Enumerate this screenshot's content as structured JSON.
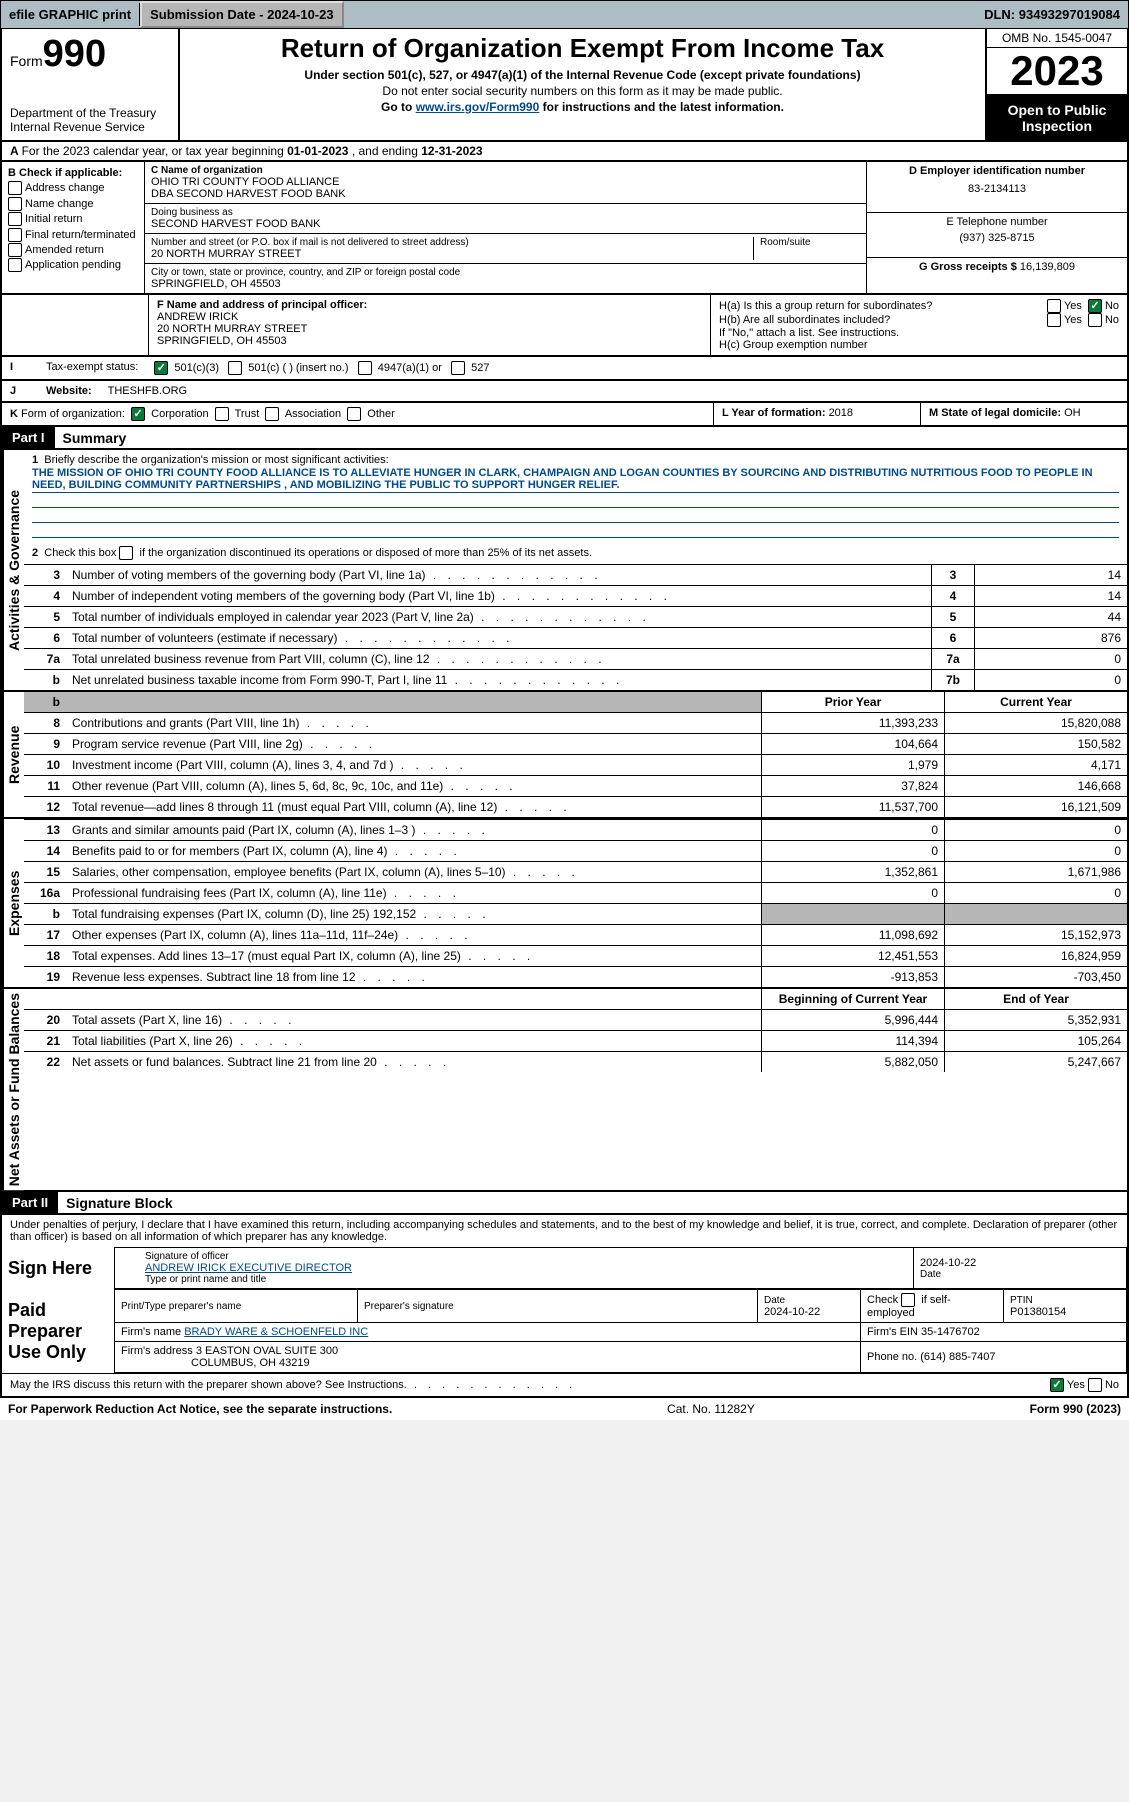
{
  "topbar": {
    "efile": "efile GRAPHIC print",
    "submission_label": "Submission Date - ",
    "submission_date": "2024-10-23",
    "dln_label": "DLN: ",
    "dln": "93493297019084"
  },
  "header": {
    "form_word": "Form",
    "form_no": "990",
    "dept": "Department of the Treasury Internal Revenue Service",
    "title": "Return of Organization Exempt From Income Tax",
    "sub1": "Under section 501(c), 527, or 4947(a)(1) of the Internal Revenue Code (except private foundations)",
    "sub2": "Do not enter social security numbers on this form as it may be made public.",
    "sub3_pre": "Go to ",
    "sub3_link": "www.irs.gov/Form990",
    "sub3_post": " for instructions and the latest information.",
    "omb": "OMB No. 1545-0047",
    "year": "2023",
    "open": "Open to Public Inspection"
  },
  "row_a": {
    "a": "A",
    "text": "For the 2023 calendar year, or tax year beginning ",
    "begin": "01-01-2023",
    "mid": " , and ending ",
    "end": "12-31-2023"
  },
  "block_b": {
    "title": "B Check if applicable:",
    "items": [
      "Address change",
      "Name change",
      "Initial return",
      "Final return/terminated",
      "Amended return",
      "Application pending"
    ]
  },
  "block_c": {
    "name_lbl": "C Name of organization",
    "name1": "OHIO TRI COUNTY FOOD ALLIANCE",
    "name2": "DBA SECOND HARVEST FOOD BANK",
    "dba_lbl": "Doing business as",
    "dba": "SECOND HARVEST FOOD BANK",
    "addr_lbl": "Number and street (or P.O. box if mail is not delivered to street address)",
    "room_lbl": "Room/suite",
    "addr": "20 NORTH MURRAY STREET",
    "city_lbl": "City or town, state or province, country, and ZIP or foreign postal code",
    "city": "SPRINGFIELD, OH  45503"
  },
  "block_d": {
    "lbl": "D Employer identification number",
    "val": "83-2134113"
  },
  "block_e": {
    "lbl": "E Telephone number",
    "val": "(937) 325-8715"
  },
  "block_g": {
    "lbl": "G Gross receipts $ ",
    "val": "16,139,809"
  },
  "block_f": {
    "lbl": "F Name and address of principal officer:",
    "name": "ANDREW IRICK",
    "addr1": "20 NORTH MURRAY STREET",
    "addr2": "SPRINGFIELD, OH  45503"
  },
  "block_h": {
    "ha": "H(a)  Is this a group return for subordinates?",
    "hb": "H(b)  Are all subordinates included?",
    "hb_note": "If \"No,\" attach a list. See instructions.",
    "hc": "H(c)  Group exemption number ",
    "yes": "Yes",
    "no": "No"
  },
  "row_i": {
    "i": "I",
    "lbl": "Tax-exempt status:",
    "opt1": "501(c)(3)",
    "opt2": "501(c) (  ) (insert no.)",
    "opt3": "4947(a)(1) or",
    "opt4": "527"
  },
  "row_j": {
    "j": "J",
    "lbl": "Website: ",
    "val": "THESHFB.ORG"
  },
  "row_k": {
    "k": "K",
    "lbl": "Form of organization:",
    "opts": [
      "Corporation",
      "Trust",
      "Association",
      "Other"
    ]
  },
  "row_l": {
    "lbl": "L Year of formation: ",
    "val": "2018"
  },
  "row_m": {
    "lbl": "M State of legal domicile: ",
    "val": "OH"
  },
  "part1": {
    "label": "Part I",
    "title": "Summary",
    "side_gov": "Activities & Governance",
    "side_rev": "Revenue",
    "side_exp": "Expenses",
    "side_net": "Net Assets or Fund Balances",
    "line1_lbl": "1",
    "line1_text": "Briefly describe the organization's mission or most significant activities:",
    "mission": "THE MISSION OF OHIO TRI COUNTY FOOD ALLIANCE IS TO ALLEVIATE HUNGER IN CLARK, CHAMPAIGN AND LOGAN COUNTIES BY SOURCING AND DISTRIBUTING NUTRITIOUS FOOD TO PEOPLE IN NEED, BUILDING COMMUNITY PARTNERSHIPS , AND MOBILIZING THE PUBLIC TO SUPPORT HUNGER RELIEF.",
    "line2_lbl": "2",
    "line2_text": "Check this box       if the organization discontinued its operations or disposed of more than 25% of its net assets.",
    "rows_gov": [
      {
        "n": "3",
        "t": "Number of voting members of the governing body (Part VI, line 1a)",
        "box": "3",
        "v": "14"
      },
      {
        "n": "4",
        "t": "Number of independent voting members of the governing body (Part VI, line 1b)",
        "box": "4",
        "v": "14"
      },
      {
        "n": "5",
        "t": "Total number of individuals employed in calendar year 2023 (Part V, line 2a)",
        "box": "5",
        "v": "44"
      },
      {
        "n": "6",
        "t": "Total number of volunteers (estimate if necessary)",
        "box": "6",
        "v": "876"
      },
      {
        "n": "7a",
        "t": "Total unrelated business revenue from Part VIII, column (C), line 12",
        "box": "7a",
        "v": "0"
      },
      {
        "n": "b",
        "t": "Net unrelated business taxable income from Form 990-T, Part I, line 11",
        "box": "7b",
        "v": "0"
      }
    ],
    "prior_year": "Prior Year",
    "current_year": "Current Year",
    "rows_rev": [
      {
        "n": "8",
        "t": "Contributions and grants (Part VIII, line 1h)",
        "p": "11,393,233",
        "c": "15,820,088"
      },
      {
        "n": "9",
        "t": "Program service revenue (Part VIII, line 2g)",
        "p": "104,664",
        "c": "150,582"
      },
      {
        "n": "10",
        "t": "Investment income (Part VIII, column (A), lines 3, 4, and 7d )",
        "p": "1,979",
        "c": "4,171"
      },
      {
        "n": "11",
        "t": "Other revenue (Part VIII, column (A), lines 5, 6d, 8c, 9c, 10c, and 11e)",
        "p": "37,824",
        "c": "146,668"
      },
      {
        "n": "12",
        "t": "Total revenue—add lines 8 through 11 (must equal Part VIII, column (A), line 12)",
        "p": "11,537,700",
        "c": "16,121,509"
      }
    ],
    "rows_exp": [
      {
        "n": "13",
        "t": "Grants and similar amounts paid (Part IX, column (A), lines 1–3 )",
        "p": "0",
        "c": "0"
      },
      {
        "n": "14",
        "t": "Benefits paid to or for members (Part IX, column (A), line 4)",
        "p": "0",
        "c": "0"
      },
      {
        "n": "15",
        "t": "Salaries, other compensation, employee benefits (Part IX, column (A), lines 5–10)",
        "p": "1,352,861",
        "c": "1,671,986"
      },
      {
        "n": "16a",
        "t": "Professional fundraising fees (Part IX, column (A), line 11e)",
        "p": "0",
        "c": "0"
      },
      {
        "n": "b",
        "t": "Total fundraising expenses (Part IX, column (D), line 25) 192,152",
        "p": "",
        "c": "",
        "shade": true
      },
      {
        "n": "17",
        "t": "Other expenses (Part IX, column (A), lines 11a–11d, 11f–24e)",
        "p": "11,098,692",
        "c": "15,152,973"
      },
      {
        "n": "18",
        "t": "Total expenses. Add lines 13–17 (must equal Part IX, column (A), line 25)",
        "p": "12,451,553",
        "c": "16,824,959"
      },
      {
        "n": "19",
        "t": "Revenue less expenses. Subtract line 18 from line 12",
        "p": "-913,853",
        "c": "-703,450"
      }
    ],
    "begin_year": "Beginning of Current Year",
    "end_year": "End of Year",
    "rows_net": [
      {
        "n": "20",
        "t": "Total assets (Part X, line 16)",
        "p": "5,996,444",
        "c": "5,352,931"
      },
      {
        "n": "21",
        "t": "Total liabilities (Part X, line 26)",
        "p": "114,394",
        "c": "105,264"
      },
      {
        "n": "22",
        "t": "Net assets or fund balances. Subtract line 21 from line 20",
        "p": "5,882,050",
        "c": "5,247,667"
      }
    ]
  },
  "part2": {
    "label": "Part II",
    "title": "Signature Block",
    "perjury": "Under penalties of perjury, I declare that I have examined this return, including accompanying schedules and statements, and to the best of my knowledge and belief, it is true, correct, and complete. Declaration of preparer (other than officer) is based on all information of which preparer has any knowledge.",
    "sign_here": "Sign Here",
    "sig_officer_lbl": "Signature of officer",
    "sig_officer": "ANDREW IRICK  EXECUTIVE DIRECTOR",
    "sig_type_lbl": "Type or print name and title",
    "date_lbl": "Date",
    "date": "2024-10-22",
    "paid": "Paid Preparer Use Only",
    "prep_name_lbl": "Print/Type preparer's name",
    "prep_sig_lbl": "Preparer's signature",
    "prep_date": "2024-10-22",
    "check_lbl": "Check        if self-employed",
    "ptin_lbl": "PTIN",
    "ptin": "P01380154",
    "firm_name_lbl": "Firm's name   ",
    "firm_name": "BRADY WARE & SCHOENFELD INC",
    "firm_ein_lbl": "Firm's EIN  ",
    "firm_ein": "35-1476702",
    "firm_addr_lbl": "Firm's address ",
    "firm_addr1": "3 EASTON OVAL SUITE 300",
    "firm_addr2": "COLUMBUS, OH  43219",
    "phone_lbl": "Phone no. ",
    "phone": "(614) 885-7407",
    "may_irs": "May the IRS discuss this return with the preparer shown above? See Instructions.",
    "yes": "Yes",
    "no": "No"
  },
  "footer": {
    "left": "For Paperwork Reduction Act Notice, see the separate instructions.",
    "mid": "Cat. No. 11282Y",
    "right_pre": "Form ",
    "right_form": "990",
    "right_post": " (2023)"
  }
}
